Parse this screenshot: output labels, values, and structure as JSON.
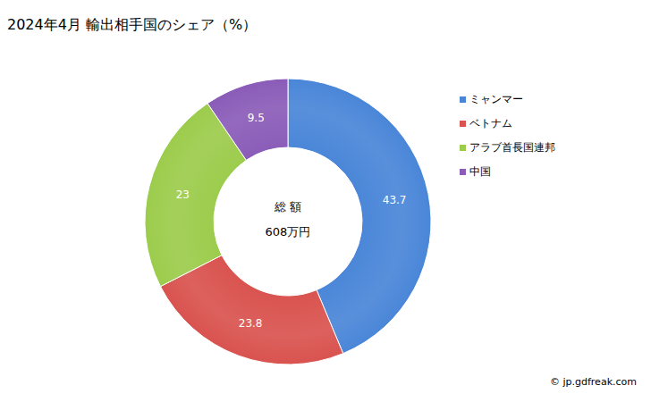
{
  "chart_data": {
    "type": "pie",
    "title": "2024年4月 輸出相手国のシェア（%）",
    "categories": [
      "ミャンマー",
      "ベトナム",
      "アラブ首長国連邦",
      "中国"
    ],
    "values": [
      43.7,
      23.8,
      23.0,
      9.5
    ],
    "colors": [
      "#4a86d8",
      "#d9534f",
      "#9ccc4c",
      "#8a5cb8"
    ],
    "data_labels": true,
    "legend": "right",
    "center_label": "総 額",
    "center_value": "608万円",
    "source": "© jp.gdfreak.com"
  }
}
